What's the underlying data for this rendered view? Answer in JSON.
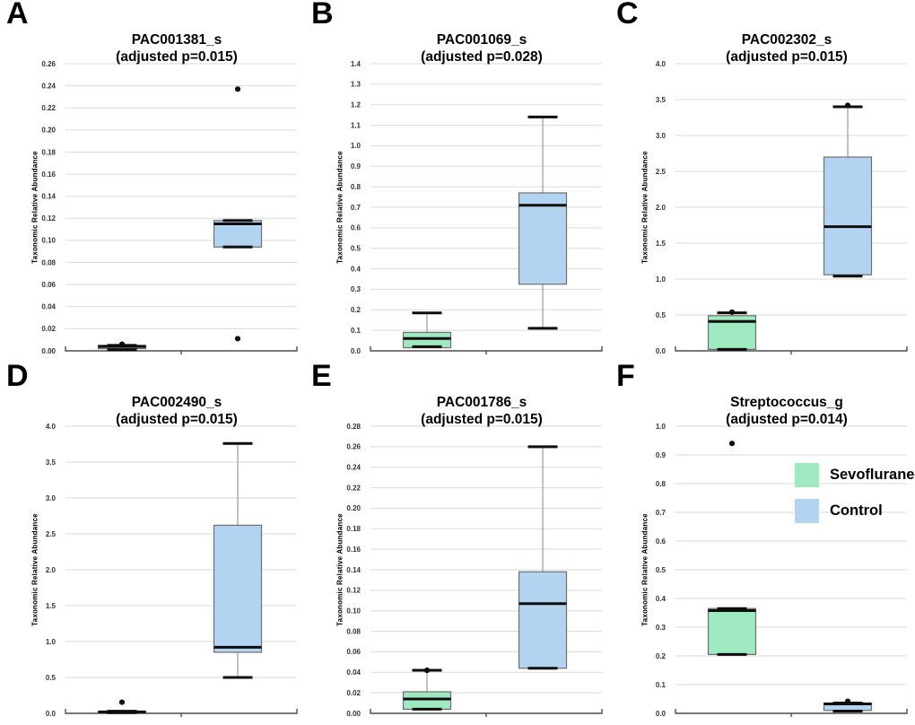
{
  "figure": {
    "legend": {
      "items": [
        {
          "label": "Sevoflurane",
          "color": "#9fe9c0"
        },
        {
          "label": "Control",
          "color": "#b3d4f1"
        }
      ]
    }
  },
  "chart_data": [
    {
      "type": "box",
      "panel_label": "A",
      "title": "PAC001381_s",
      "subtitle": "(adjusted p=0.015)",
      "ylabel": "Taxonomic Relative Abundance",
      "ylim": [
        0,
        0.26
      ],
      "ytick_step": 0.02,
      "tick_decimals": 2,
      "grid": true,
      "groups": [
        {
          "name": "Sevoflurane",
          "whisker_low": 0.001,
          "q1": 0.002,
          "median": 0.004,
          "q3": 0.005,
          "whisker_high": 0.005,
          "outliers": [
            0.006
          ]
        },
        {
          "name": "Control",
          "whisker_low": 0.094,
          "q1": 0.094,
          "median": 0.115,
          "q3": 0.118,
          "whisker_high": 0.118,
          "outliers": [
            0.237,
            0.011
          ]
        }
      ]
    },
    {
      "type": "box",
      "panel_label": "B",
      "title": "PAC001069_s",
      "subtitle": "(adjusted p=0.028)",
      "ylabel": "Taxonomic Relative Abundance",
      "ylim": [
        0,
        1.4
      ],
      "ytick_step": 0.1,
      "tick_decimals": 1,
      "grid": true,
      "groups": [
        {
          "name": "Sevoflurane",
          "whisker_low": 0.02,
          "q1": 0.015,
          "median": 0.06,
          "q3": 0.09,
          "whisker_high": 0.185,
          "outliers": []
        },
        {
          "name": "Control",
          "whisker_low": 0.11,
          "q1": 0.325,
          "median": 0.71,
          "q3": 0.77,
          "whisker_high": 1.14,
          "outliers": []
        }
      ]
    },
    {
      "type": "box",
      "panel_label": "C",
      "title": "PAC002302_s",
      "subtitle": "(adjusted p=0.015)",
      "ylabel": "Taxonomic Relative Abundance",
      "ylim": [
        0,
        4.0
      ],
      "ytick_step": 0.5,
      "tick_decimals": 1,
      "grid": true,
      "groups": [
        {
          "name": "Sevoflurane",
          "whisker_low": 0.02,
          "q1": 0.02,
          "median": 0.41,
          "q3": 0.49,
          "whisker_high": 0.53,
          "outliers": [
            0.54
          ]
        },
        {
          "name": "Control",
          "whisker_low": 1.04,
          "q1": 1.06,
          "median": 1.73,
          "q3": 2.7,
          "whisker_high": 3.4,
          "outliers": [
            3.42
          ]
        }
      ]
    },
    {
      "type": "box",
      "panel_label": "D",
      "title": "PAC002490_s",
      "subtitle": "(adjusted p=0.015)",
      "ylabel": "Taxonomic Relative Abundance",
      "ylim": [
        0,
        4.0
      ],
      "ytick_step": 0.5,
      "tick_decimals": 1,
      "grid": true,
      "groups": [
        {
          "name": "Sevoflurane",
          "whisker_low": 0.01,
          "q1": 0.01,
          "median": 0.02,
          "q3": 0.03,
          "whisker_high": 0.03,
          "outliers": [
            0.155
          ]
        },
        {
          "name": "Control",
          "whisker_low": 0.5,
          "q1": 0.85,
          "median": 0.92,
          "q3": 2.62,
          "whisker_high": 3.76,
          "outliers": []
        }
      ]
    },
    {
      "type": "box",
      "panel_label": "E",
      "title": "PAC001786_s",
      "subtitle": "(adjusted p=0.015)",
      "ylabel": "Taxonomic Relative Abundance",
      "ylim": [
        0,
        0.28
      ],
      "ytick_step": 0.02,
      "tick_decimals": 2,
      "grid": true,
      "groups": [
        {
          "name": "Sevoflurane",
          "whisker_low": 0.004,
          "q1": 0.004,
          "median": 0.014,
          "q3": 0.021,
          "whisker_high": 0.042,
          "outliers": [
            0.042
          ]
        },
        {
          "name": "Control",
          "whisker_low": 0.044,
          "q1": 0.044,
          "median": 0.107,
          "q3": 0.138,
          "whisker_high": 0.26,
          "outliers": []
        }
      ]
    },
    {
      "type": "box",
      "panel_label": "F",
      "title": "Streptococcus_g",
      "subtitle": "(adjusted p=0.014)",
      "ylabel": "Taxonomic Relative Abundance",
      "ylim": [
        0,
        1.0
      ],
      "ytick_step": 0.1,
      "tick_decimals": 1,
      "grid": true,
      "groups": [
        {
          "name": "Sevoflurane",
          "whisker_low": 0.205,
          "q1": 0.205,
          "median": 0.358,
          "q3": 0.365,
          "whisker_high": 0.365,
          "outliers": [
            0.94
          ]
        },
        {
          "name": "Control",
          "whisker_low": 0.008,
          "q1": 0.01,
          "median": 0.033,
          "q3": 0.036,
          "whisker_high": 0.036,
          "outliers": [
            0.042
          ]
        }
      ]
    }
  ]
}
